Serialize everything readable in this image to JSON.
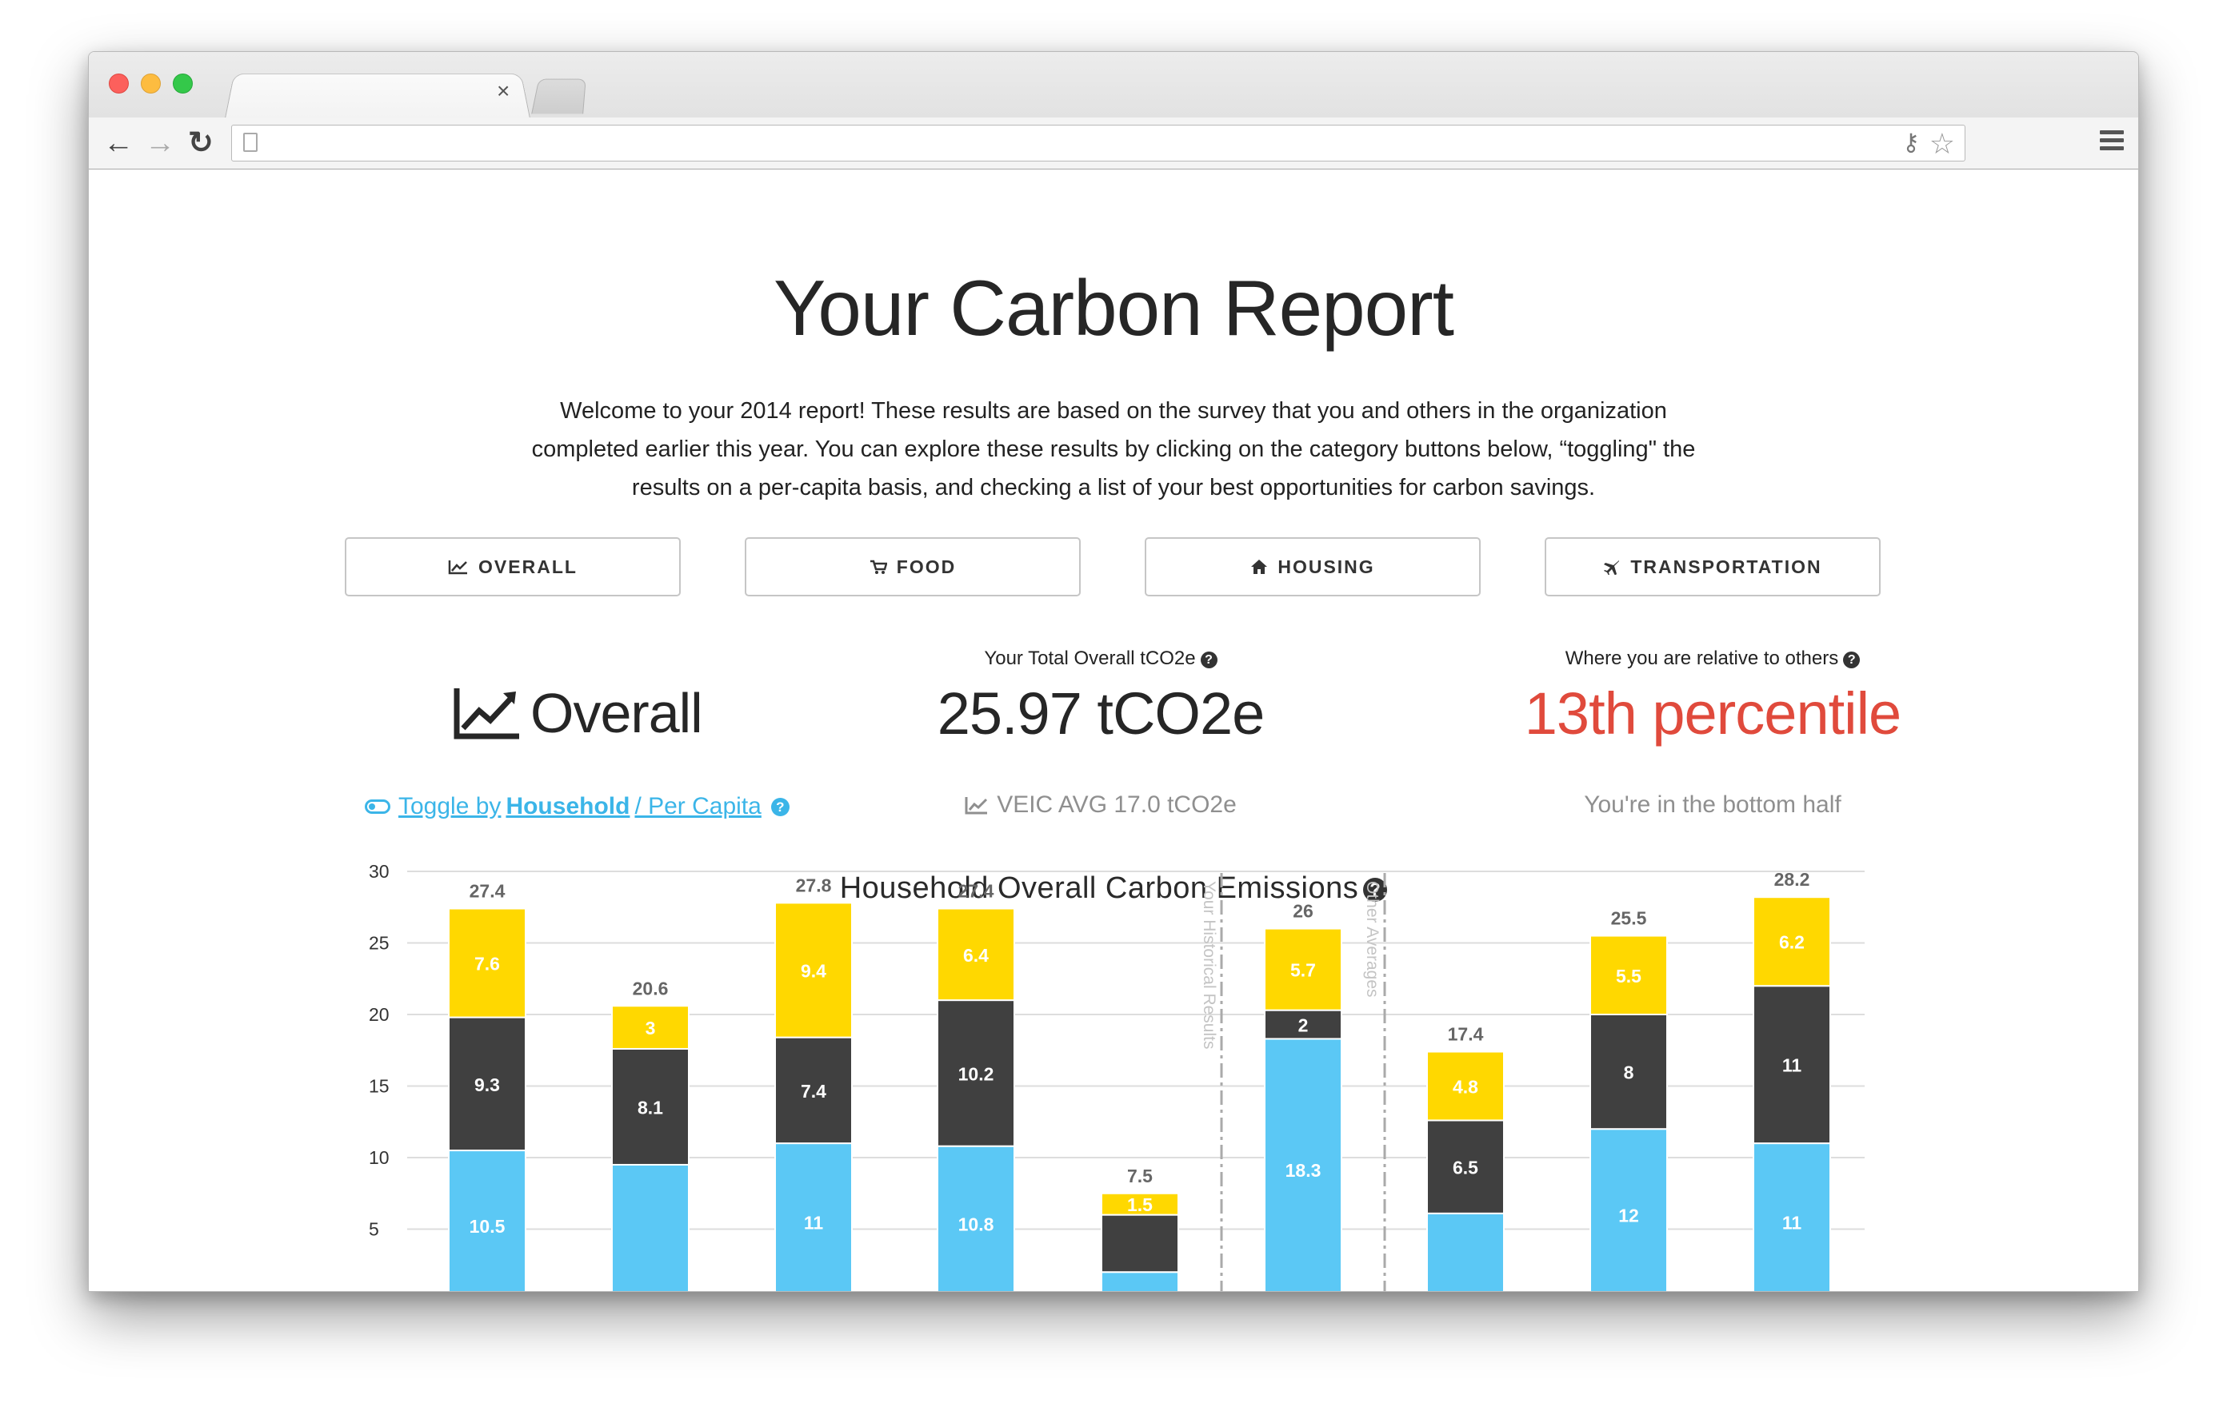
{
  "browser": {
    "tab_close": "×",
    "back": "←",
    "forward": "→",
    "reload": "↻"
  },
  "page": {
    "title": "Your Carbon Report",
    "intro_line1": "Welcome to your 2014 report! These results are based on the survey that you and others in the organization",
    "intro_line2": "completed earlier this year. You can explore these results by clicking on the category buttons below, “toggling\" the",
    "intro_line3": "results on a per-capita basis, and checking a list of your best opportunities for carbon savings."
  },
  "categories": [
    {
      "label": "OVERALL",
      "icon": "line-chart-icon"
    },
    {
      "label": "FOOD",
      "icon": "cart-icon"
    },
    {
      "label": "HOUSING",
      "icon": "home-icon"
    },
    {
      "label": "TRANSPORTATION",
      "icon": "plane-icon"
    }
  ],
  "stats": {
    "section_name": "Overall",
    "total_label": "Your Total Overall tCO2e",
    "total_value": "25.97 tCO2e",
    "relative_label": "Where you are relative to others",
    "percentile": "13th percentile",
    "toggle_prefix": " Toggle by ",
    "toggle_household": "Household",
    "toggle_suffix": " / Per Capita ",
    "average": "VEIC AVG 17.0 tCO2e",
    "bottom_text": "You're in the bottom half",
    "percentile_color": "#e04a3c"
  },
  "chart_data": {
    "type": "bar",
    "stacked": true,
    "title": "Household Overall Carbon Emissions",
    "ylim": [
      0,
      30
    ],
    "yticks": [
      "30",
      "25",
      "20",
      "15",
      "10",
      "5"
    ],
    "group_labels": [
      "Your Historical Results",
      "Other Averages"
    ],
    "totals": [
      "27.4",
      "20.6",
      "27.8",
      "27.4",
      "7.5",
      "26",
      "17.4",
      "25.5",
      "28.2"
    ],
    "series": [
      {
        "color": "#5bc8f5",
        "values": [
          10.5,
          9.5,
          11,
          10.8,
          2,
          18.3,
          6.1,
          12,
          11
        ],
        "labels": [
          "10.5",
          "",
          "11",
          "10.8",
          "",
          "18.3",
          "",
          "12",
          "11"
        ]
      },
      {
        "color": "#404040",
        "values": [
          9.3,
          8.1,
          7.4,
          10.2,
          4,
          2,
          6.5,
          8,
          11
        ],
        "labels": [
          "9.3",
          "8.1",
          "7.4",
          "10.2",
          "",
          "2",
          "6.5",
          "8",
          "11"
        ]
      },
      {
        "color": "#ffd800",
        "values": [
          7.6,
          3,
          9.4,
          6.4,
          1.5,
          5.7,
          4.8,
          5.5,
          6.2
        ],
        "labels": [
          "7.6",
          "3",
          "9.4",
          "6.4",
          "1.5",
          "5.7",
          "4.8",
          "5.5",
          "6.2"
        ]
      }
    ]
  }
}
